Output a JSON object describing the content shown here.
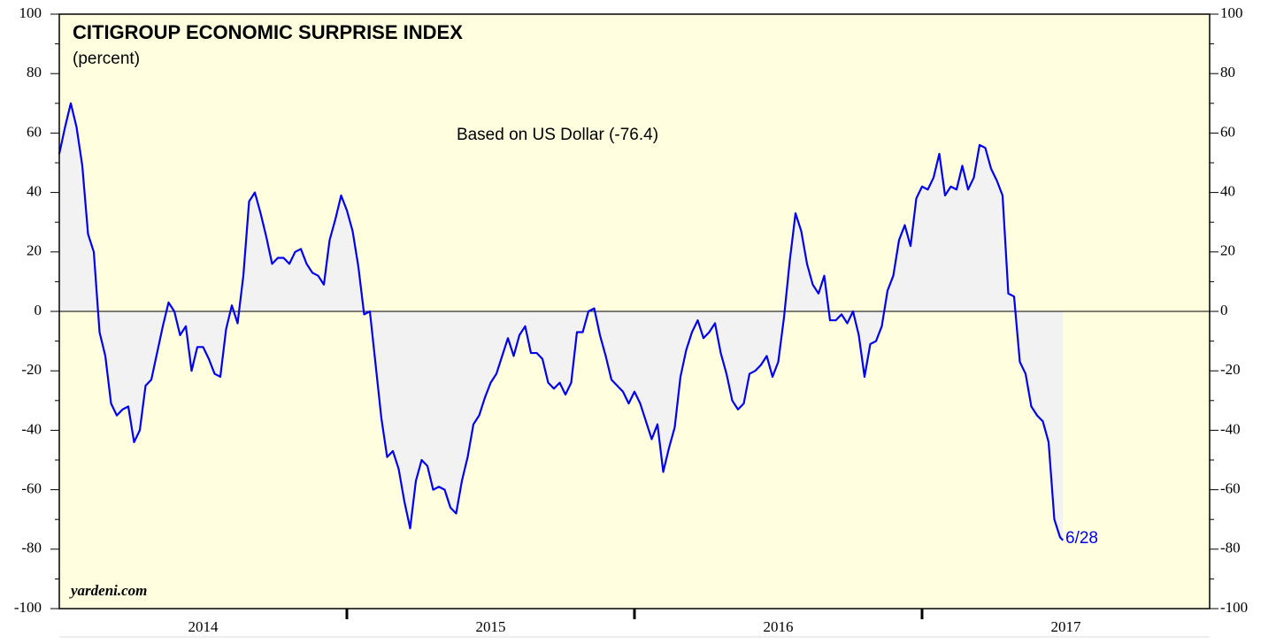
{
  "chart_data": {
    "type": "line",
    "title": "CITIGROUP ECONOMIC SURPRISE INDEX",
    "subtitle": "(percent)",
    "annotations": [
      "Based on US Dollar (-76.4)",
      "6/28",
      "yardeni.com"
    ],
    "xlim": [
      2014,
      2018
    ],
    "xticks": [
      {
        "value": 2014.5,
        "label": "2014"
      },
      {
        "value": 2015.5,
        "label": "2015"
      },
      {
        "value": 2016.5,
        "label": "2016"
      },
      {
        "value": 2017.5,
        "label": "2017"
      }
    ],
    "x_boundaries": [
      2015,
      2016,
      2017
    ],
    "ylim": [
      -100,
      100
    ],
    "yticks": [
      -100,
      -80,
      -60,
      -40,
      -20,
      0,
      20,
      40,
      60,
      80,
      100
    ],
    "yminorticks": [
      -90,
      -70,
      -50,
      -30,
      -10,
      10,
      30,
      50,
      70,
      90
    ],
    "background": "#ffffe0",
    "fill_color": "#f2f2f2",
    "x": [
      2014,
      2014.02,
      2014.04,
      2014.06,
      2014.08,
      2014.1,
      2014.12,
      2014.14,
      2014.16,
      2014.18,
      2014.2,
      2014.22,
      2014.24,
      2014.26,
      2014.28,
      2014.3,
      2014.32,
      2014.34,
      2014.36,
      2014.38,
      2014.4,
      2014.42,
      2014.44,
      2014.46,
      2014.48,
      2014.5,
      2014.52,
      2014.54,
      2014.56,
      2014.58,
      2014.6,
      2014.62,
      2014.64,
      2014.66,
      2014.68,
      2014.7,
      2014.72,
      2014.74,
      2014.76,
      2014.78,
      2014.8,
      2014.82,
      2014.84,
      2014.86,
      2014.88,
      2014.9,
      2014.92,
      2014.94,
      2014.96,
      2014.98,
      2015,
      2015.02,
      2015.04,
      2015.06,
      2015.08,
      2015.1,
      2015.12,
      2015.14,
      2015.16,
      2015.18,
      2015.2,
      2015.22,
      2015.24,
      2015.26,
      2015.28,
      2015.3,
      2015.32,
      2015.34,
      2015.36,
      2015.38,
      2015.4,
      2015.42,
      2015.44,
      2015.46,
      2015.48,
      2015.5,
      2015.52,
      2015.54,
      2015.56,
      2015.58,
      2015.6,
      2015.62,
      2015.64,
      2015.66,
      2015.68,
      2015.7,
      2015.72,
      2015.74,
      2015.76,
      2015.78,
      2015.8,
      2015.82,
      2015.84,
      2015.86,
      2015.88,
      2015.9,
      2015.92,
      2015.94,
      2015.96,
      2015.98,
      2016,
      2016.02,
      2016.04,
      2016.06,
      2016.08,
      2016.1,
      2016.12,
      2016.14,
      2016.16,
      2016.18,
      2016.2,
      2016.22,
      2016.24,
      2016.26,
      2016.28,
      2016.3,
      2016.32,
      2016.34,
      2016.36,
      2016.38,
      2016.4,
      2016.42,
      2016.44,
      2016.46,
      2016.48,
      2016.5,
      2016.52,
      2016.54,
      2016.56,
      2016.58,
      2016.6,
      2016.62,
      2016.64,
      2016.66,
      2016.68,
      2016.7,
      2016.72,
      2016.74,
      2016.76,
      2016.78,
      2016.8,
      2016.82,
      2016.84,
      2016.86,
      2016.88,
      2016.9,
      2016.92,
      2016.94,
      2016.96,
      2016.98,
      2017,
      2017.02,
      2017.04,
      2017.06,
      2017.08,
      2017.1,
      2017.12,
      2017.14,
      2017.16,
      2017.18,
      2017.2,
      2017.22,
      2017.24,
      2017.26,
      2017.28,
      2017.3,
      2017.32,
      2017.34,
      2017.36,
      2017.38,
      2017.4,
      2017.42,
      2017.44,
      2017.46,
      2017.48,
      2017.49
    ],
    "series": [
      {
        "name": "Citigroup Economic Surprise Index",
        "color": "#0000ee",
        "values": [
          53,
          62,
          70,
          62,
          49,
          26,
          20,
          -7,
          -15,
          -31,
          -35,
          -33,
          -32,
          -44,
          -40,
          -25,
          -23,
          -14,
          -5,
          3,
          0,
          -8,
          -5,
          -20,
          -12,
          -12,
          -16,
          -21,
          -22,
          -6,
          2,
          -4,
          12,
          37,
          40,
          33,
          25,
          16,
          18,
          18,
          16,
          20,
          21,
          16,
          13,
          12,
          9,
          24,
          31,
          39,
          34,
          27,
          15,
          -1,
          0,
          -18,
          -36,
          -49,
          -47,
          -53,
          -64,
          -73,
          -57,
          -50,
          -52,
          -60,
          -59,
          -60,
          -66,
          -68,
          -57,
          -49,
          -38,
          -35,
          -29,
          -24,
          -21,
          -15,
          -9,
          -15,
          -8,
          -5,
          -14,
          -14,
          -16,
          -24,
          -26,
          -24,
          -28,
          -24,
          -7,
          -7,
          0,
          1,
          -8,
          -15,
          -23,
          -25,
          -27,
          -31,
          -27,
          -31,
          -37,
          -43,
          -38,
          -54,
          -46,
          -39,
          -22,
          -13,
          -7,
          -3,
          -9,
          -7,
          -4,
          -14,
          -21,
          -30,
          -33,
          -31,
          -21,
          -20,
          -18,
          -15,
          -22,
          -17,
          -2,
          17,
          33,
          27,
          16,
          9,
          6,
          12,
          -3,
          -3,
          -1,
          -4,
          0,
          -8,
          -22,
          -11,
          -10,
          -5,
          7,
          12,
          24,
          29,
          22,
          38,
          42,
          41,
          45,
          53,
          39,
          42,
          41,
          49,
          41,
          45,
          56,
          55,
          48,
          44,
          39,
          6,
          5,
          -17,
          -21,
          -32,
          -35,
          -37,
          -44,
          -70,
          -76,
          -77
        ]
      }
    ]
  }
}
